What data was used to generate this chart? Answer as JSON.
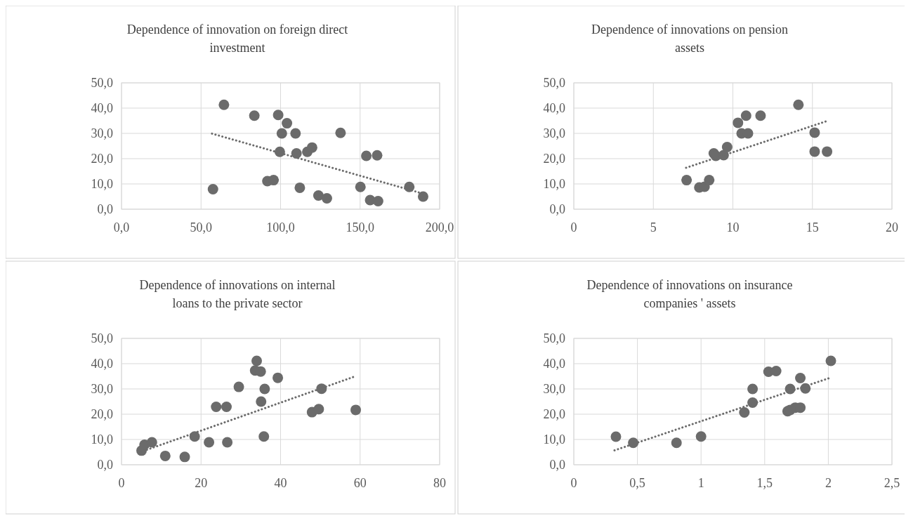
{
  "chart_data": [
    {
      "type": "scatter",
      "title": "Dependence of innovation on foreign direct investment",
      "grid": true,
      "marker": "circle",
      "xlim": [
        0,
        200
      ],
      "ylim": [
        0,
        50
      ],
      "xticks": [
        {
          "value": 0,
          "label": "0,0"
        },
        {
          "value": 50,
          "label": "50,0"
        },
        {
          "value": 100,
          "label": "100,0"
        },
        {
          "value": 150,
          "label": "150,0"
        },
        {
          "value": 200,
          "label": "200,0"
        }
      ],
      "yticks": [
        {
          "value": 0,
          "label": "0,0"
        },
        {
          "value": 10,
          "label": "10,0"
        },
        {
          "value": 20,
          "label": "20,0"
        },
        {
          "value": 30,
          "label": "30,0"
        },
        {
          "value": 40,
          "label": "40,0"
        },
        {
          "value": 50,
          "label": "50,0"
        }
      ],
      "series": [
        {
          "type": "scatter",
          "color": "#6b6b6b",
          "x": [
            64.4,
            83.5,
            98.5,
            104,
            100.8,
            109.4,
            137.7,
            99.5,
            110,
            116.8,
            119.8,
            153.9,
            160.7,
            91.7,
            95.6,
            57.5,
            112.1,
            123.8,
            129.1,
            150.2,
            156.3,
            161.3,
            180.9,
            189.6
          ],
          "values": [
            41.3,
            37,
            37.3,
            34,
            30,
            30,
            30.2,
            22.7,
            22.1,
            22.7,
            24.4,
            21.1,
            21.3,
            11.1,
            11.5,
            7.9,
            8.5,
            5.4,
            4.3,
            8.8,
            3.6,
            3.2,
            8.8,
            5
          ]
        },
        {
          "type": "line",
          "color": "#6b6b6b",
          "line_style": "dotted",
          "marker": "none",
          "x": [
            56.9,
            189.9
          ],
          "values": [
            29.9,
            6.1
          ]
        }
      ]
    },
    {
      "type": "scatter",
      "title": "Dependence of innovations on pension assets",
      "grid": true,
      "marker": "circle",
      "xlim": [
        0,
        20
      ],
      "ylim": [
        0,
        50
      ],
      "xticks": [
        0,
        5,
        10,
        15,
        20
      ],
      "yticks": [
        {
          "value": 0,
          "label": "0,0"
        },
        {
          "value": 10,
          "label": "10,0"
        },
        {
          "value": 20,
          "label": "20,0"
        },
        {
          "value": 30,
          "label": "30,0"
        },
        {
          "value": 40,
          "label": "40,0"
        },
        {
          "value": 50,
          "label": "50,0"
        }
      ],
      "series": [
        {
          "type": "scatter",
          "color": "#6b6b6b",
          "x": [
            7.09,
            7.89,
            8.22,
            8.51,
            8.8,
            8.93,
            9.42,
            9.64,
            10.32,
            10.55,
            10.95,
            10.83,
            11.74,
            14.12,
            15.14,
            15.14,
            15.92
          ],
          "values": [
            11.5,
            8.6,
            8.9,
            11.5,
            22.1,
            21.1,
            21.4,
            24.6,
            34.2,
            30,
            30,
            37,
            37,
            41.3,
            30.3,
            22.8,
            22.8
          ]
        },
        {
          "type": "line",
          "color": "#6b6b6b",
          "line_style": "dotted",
          "marker": "none",
          "x": [
            7.06,
            15.92
          ],
          "values": [
            16.4,
            34.9
          ]
        }
      ]
    },
    {
      "type": "scatter",
      "title": "Dependence of innovations on internal loans to the private sector",
      "grid": true,
      "marker": "circle",
      "xlim": [
        0,
        80
      ],
      "ylim": [
        0,
        50
      ],
      "xticks": [
        0,
        20,
        40,
        60,
        80
      ],
      "yticks": [
        {
          "value": 0,
          "label": "0,0"
        },
        {
          "value": 10,
          "label": "10,0"
        },
        {
          "value": 20,
          "label": "20,0"
        },
        {
          "value": 30,
          "label": "30,0"
        },
        {
          "value": 40,
          "label": "40,0"
        },
        {
          "value": 50,
          "label": "50,0"
        }
      ],
      "series": [
        {
          "type": "scatter",
          "color": "#6b6b6b",
          "x": [
            5.04,
            5.8,
            7.65,
            11,
            15.9,
            18.4,
            22,
            26.6,
            23.8,
            26.4,
            29.5,
            34,
            33.6,
            35,
            35.1,
            36,
            35.8,
            39.3,
            47.9,
            49.6,
            50.3,
            58.9
          ],
          "values": [
            5.6,
            7.9,
            8.9,
            3.5,
            3.1,
            11.2,
            8.9,
            8.9,
            22.9,
            22.9,
            30.8,
            41.1,
            37.3,
            36.9,
            25,
            30,
            11.2,
            34.4,
            20.8,
            22,
            30.1,
            21.7
          ]
        },
        {
          "type": "line",
          "color": "#6b6b6b",
          "line_style": "dotted",
          "marker": "none",
          "x": [
            4.7,
            58.8
          ],
          "values": [
            5,
            35
          ]
        }
      ]
    },
    {
      "type": "scatter",
      "title": "Dependence of innovations on insurance companies ' assets",
      "grid": true,
      "marker": "circle",
      "xlim": [
        0,
        2.5
      ],
      "ylim": [
        0,
        50
      ],
      "xticks": [
        0,
        {
          "value": 0.5,
          "label": "0,5"
        },
        1,
        {
          "value": 1.5,
          "label": "1,5"
        },
        2,
        {
          "value": 2.5,
          "label": "2,5"
        }
      ],
      "yticks": [
        {
          "value": 0,
          "label": "0,0"
        },
        {
          "value": 10,
          "label": "10,0"
        },
        {
          "value": 20,
          "label": "20,0"
        },
        {
          "value": 30,
          "label": "30,0"
        },
        {
          "value": 40,
          "label": "40,0"
        },
        {
          "value": 50,
          "label": "50,0"
        }
      ],
      "series": [
        {
          "type": "scatter",
          "color": "#6b6b6b",
          "x": [
            0.331,
            0.467,
            0.807,
            1,
            1.34,
            1.405,
            1.405,
            1.53,
            1.59,
            1.7,
            1.78,
            1.82,
            1.68,
            1.7,
            1.74,
            1.78,
            2.02
          ],
          "values": [
            11.1,
            8.7,
            8.7,
            11.2,
            20.7,
            24.6,
            30,
            36.8,
            37.1,
            30,
            34.3,
            30.2,
            21.2,
            21.7,
            22.6,
            22.6,
            41.1
          ]
        },
        {
          "type": "line",
          "color": "#6b6b6b",
          "line_style": "dotted",
          "marker": "none",
          "x": [
            0.32,
            2.02
          ],
          "values": [
            5.7,
            34.5
          ]
        }
      ]
    }
  ]
}
